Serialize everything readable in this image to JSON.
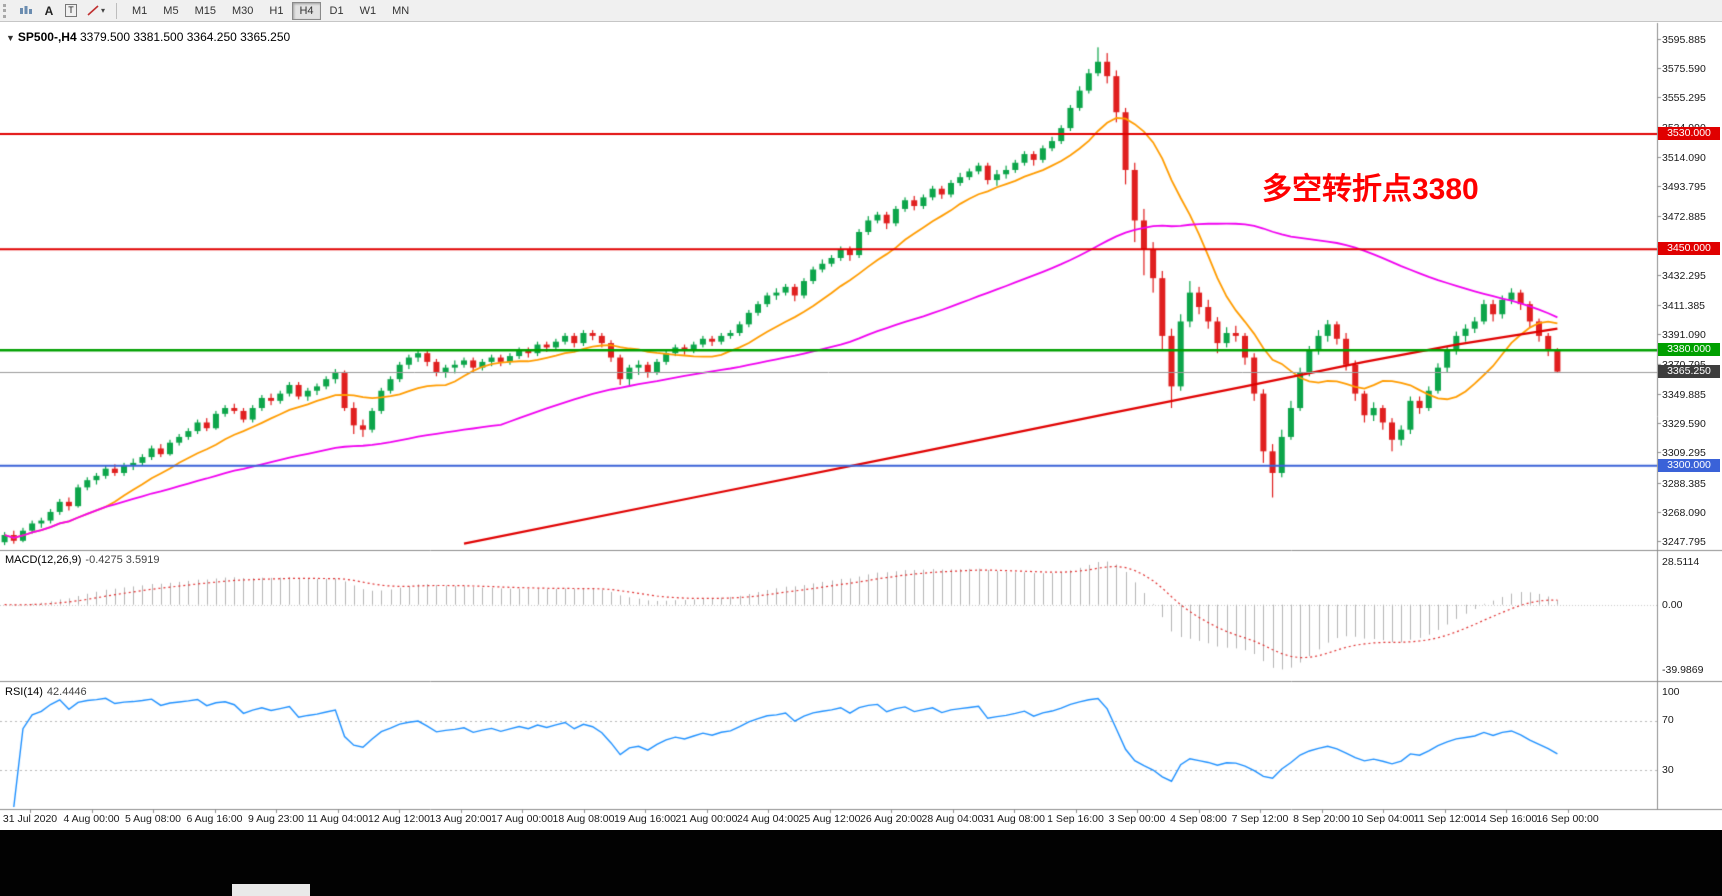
{
  "toolbar": {
    "tools": [
      {
        "label": "A"
      },
      {
        "label": "T"
      }
    ],
    "timeframes": [
      {
        "label": "M1",
        "active": false
      },
      {
        "label": "M5",
        "active": false
      },
      {
        "label": "M15",
        "active": false
      },
      {
        "label": "M30",
        "active": false
      },
      {
        "label": "H1",
        "active": false
      },
      {
        "label": "H4",
        "active": true
      },
      {
        "label": "D1",
        "active": false
      },
      {
        "label": "W1",
        "active": false
      },
      {
        "label": "MN",
        "active": false
      }
    ]
  },
  "chart": {
    "title_text": "SP500-,H4",
    "ohlc_text": "3379.500 3381.500 3364.250 3365.250",
    "annotation": {
      "text": "多空转折点3380",
      "color": "#ff0000"
    }
  },
  "macd": {
    "label": "MACD(12,26,9)",
    "values_text": "-0.4275 3.5919",
    "axis_top": "28.5114",
    "axis_zero": "0.00",
    "axis_min": "-39.9869"
  },
  "rsi": {
    "label": "RSI(14)",
    "value_text": "42.4446",
    "axis_top": "100",
    "axis_upper": "70",
    "axis_lower": "30"
  },
  "price_axis": {
    "labels": [
      "3595.885",
      "3575.590",
      "3555.295",
      "3534.990",
      "3514.090",
      "3493.795",
      "3472.885",
      "3452.590",
      "3432.295",
      "3411.385",
      "3391.090",
      "3370.795",
      "3349.885",
      "3329.590",
      "3309.295",
      "3288.385",
      "3268.090",
      "3247.795"
    ]
  },
  "time_axis": {
    "labels": [
      "31 Jul 2020",
      "4 Aug 00:00",
      "5 Aug 08:00",
      "6 Aug 16:00",
      "9 Aug 23:00",
      "11 Aug 04:00",
      "12 Aug 12:00",
      "13 Aug 20:00",
      "17 Aug 00:00",
      "18 Aug 08:00",
      "19 Aug 16:00",
      "21 Aug 00:00",
      "24 Aug 04:00",
      "25 Aug 12:00",
      "26 Aug 20:00",
      "28 Aug 04:00",
      "31 Aug 08:00",
      "1 Sep 16:00",
      "3 Sep 00:00",
      "4 Sep 08:00",
      "7 Sep 12:00",
      "8 Sep 20:00",
      "10 Sep 04:00",
      "11 Sep 12:00",
      "14 Sep 16:00",
      "16 Sep 00:00"
    ]
  },
  "chart_data": {
    "type": "candlestick",
    "symbol": "SP500-",
    "timeframe": "H4",
    "last_candle": {
      "open": 3379.5,
      "high": 3381.5,
      "low": 3364.25,
      "close": 3365.25
    },
    "ylim": [
      3243,
      3602
    ],
    "up_color": "#0ca54a",
    "down_color": "#e01f1f",
    "horizontal_levels": [
      {
        "price": 3530.0,
        "label": "3530.000",
        "color": "#e00000",
        "width": 2
      },
      {
        "price": 3450.0,
        "label": "3450.000",
        "color": "#e00000",
        "width": 2
      },
      {
        "price": 3380.0,
        "label": "3380.000",
        "color": "#00a000",
        "width": 2.4
      },
      {
        "price": 3300.0,
        "label": "3300.000",
        "color": "#3a62d8",
        "width": 2
      }
    ],
    "current_price": {
      "value": 3365.25,
      "label": "3365.250",
      "line_color": "#9a9a9a",
      "badge_color": "#3d3d3d"
    },
    "moving_averages": [
      {
        "name": "fast",
        "type": "sma",
        "period": 12,
        "color": "#ff9c00",
        "width": 1.8
      },
      {
        "name": "medium",
        "type": "sma",
        "period": 55,
        "color": "#f000f0",
        "width": 1.8
      },
      {
        "name": "slow",
        "type": "points",
        "color": "#e00000",
        "width": 2.2,
        "points": [
          [
            50,
            3246
          ],
          [
            75,
            3278
          ],
          [
            100,
            3310
          ],
          [
            120,
            3336
          ],
          [
            135,
            3355
          ],
          [
            148,
            3372
          ],
          [
            158,
            3384
          ],
          [
            164,
            3390
          ],
          [
            169,
            3395
          ]
        ]
      }
    ],
    "macd": {
      "fast": 12,
      "slow": 26,
      "signal": 9,
      "hist_color": "#b4b4b4",
      "signal_color": "#e03030"
    },
    "rsi": {
      "period": 14,
      "color": "#1e90ff",
      "levels": [
        70,
        30
      ]
    },
    "candles": [
      [
        3247,
        3254,
        3245,
        3252
      ],
      [
        3252,
        3255,
        3246,
        3248
      ],
      [
        3248,
        3257,
        3247,
        3255
      ],
      [
        3255,
        3262,
        3253,
        3260
      ],
      [
        3260,
        3264,
        3257,
        3262
      ],
      [
        3262,
        3270,
        3260,
        3268
      ],
      [
        3268,
        3277,
        3266,
        3275
      ],
      [
        3275,
        3278,
        3269,
        3272
      ],
      [
        3272,
        3287,
        3271,
        3285
      ],
      [
        3285,
        3292,
        3283,
        3290
      ],
      [
        3290,
        3295,
        3287,
        3293
      ],
      [
        3293,
        3300,
        3291,
        3298
      ],
      [
        3298,
        3301,
        3293,
        3295
      ],
      [
        3295,
        3302,
        3293,
        3300
      ],
      [
        3300,
        3305,
        3297,
        3302
      ],
      [
        3302,
        3308,
        3300,
        3306
      ],
      [
        3306,
        3314,
        3304,
        3312
      ],
      [
        3312,
        3315,
        3306,
        3308
      ],
      [
        3308,
        3318,
        3307,
        3316
      ],
      [
        3316,
        3322,
        3314,
        3320
      ],
      [
        3320,
        3326,
        3318,
        3324
      ],
      [
        3324,
        3332,
        3322,
        3330
      ],
      [
        3330,
        3333,
        3324,
        3326
      ],
      [
        3326,
        3338,
        3325,
        3336
      ],
      [
        3336,
        3342,
        3334,
        3340
      ],
      [
        3340,
        3343,
        3336,
        3338
      ],
      [
        3338,
        3340,
        3330,
        3332
      ],
      [
        3332,
        3342,
        3330,
        3340
      ],
      [
        3340,
        3349,
        3338,
        3347
      ],
      [
        3347,
        3350,
        3342,
        3345
      ],
      [
        3345,
        3352,
        3343,
        3350
      ],
      [
        3350,
        3358,
        3348,
        3356
      ],
      [
        3356,
        3358,
        3346,
        3348
      ],
      [
        3348,
        3354,
        3345,
        3352
      ],
      [
        3352,
        3357,
        3349,
        3355
      ],
      [
        3355,
        3362,
        3353,
        3360
      ],
      [
        3360,
        3367,
        3357,
        3365
      ],
      [
        3365,
        3366,
        3338,
        3340
      ],
      [
        3340,
        3344,
        3322,
        3328
      ],
      [
        3328,
        3332,
        3320,
        3325
      ],
      [
        3325,
        3340,
        3323,
        3338
      ],
      [
        3338,
        3354,
        3336,
        3352
      ],
      [
        3352,
        3362,
        3350,
        3360
      ],
      [
        3360,
        3372,
        3358,
        3370
      ],
      [
        3370,
        3377,
        3367,
        3375
      ],
      [
        3375,
        3380,
        3372,
        3378
      ],
      [
        3378,
        3380,
        3369,
        3372
      ],
      [
        3372,
        3374,
        3362,
        3365
      ],
      [
        3365,
        3370,
        3361,
        3368
      ],
      [
        3368,
        3373,
        3364,
        3370
      ],
      [
        3370,
        3375,
        3368,
        3373
      ],
      [
        3373,
        3375,
        3365,
        3368
      ],
      [
        3368,
        3374,
        3366,
        3372
      ],
      [
        3372,
        3377,
        3369,
        3375
      ],
      [
        3375,
        3377,
        3369,
        3372
      ],
      [
        3372,
        3378,
        3370,
        3376
      ],
      [
        3376,
        3382,
        3374,
        3380
      ],
      [
        3380,
        3382,
        3375,
        3378
      ],
      [
        3378,
        3386,
        3376,
        3384
      ],
      [
        3384,
        3386,
        3379,
        3382
      ],
      [
        3382,
        3388,
        3380,
        3386
      ],
      [
        3386,
        3392,
        3384,
        3390
      ],
      [
        3390,
        3392,
        3382,
        3385
      ],
      [
        3385,
        3394,
        3383,
        3392
      ],
      [
        3392,
        3394,
        3387,
        3390
      ],
      [
        3390,
        3392,
        3382,
        3385
      ],
      [
        3385,
        3387,
        3372,
        3375
      ],
      [
        3375,
        3377,
        3356,
        3360
      ],
      [
        3360,
        3370,
        3356,
        3368
      ],
      [
        3368,
        3373,
        3363,
        3370
      ],
      [
        3370,
        3372,
        3361,
        3365
      ],
      [
        3365,
        3374,
        3363,
        3372
      ],
      [
        3372,
        3380,
        3370,
        3378
      ],
      [
        3378,
        3384,
        3376,
        3382
      ],
      [
        3382,
        3384,
        3377,
        3380
      ],
      [
        3380,
        3386,
        3378,
        3384
      ],
      [
        3384,
        3390,
        3382,
        3388
      ],
      [
        3388,
        3390,
        3383,
        3386
      ],
      [
        3386,
        3392,
        3384,
        3390
      ],
      [
        3390,
        3394,
        3388,
        3392
      ],
      [
        3392,
        3400,
        3390,
        3398
      ],
      [
        3398,
        3408,
        3396,
        3406
      ],
      [
        3406,
        3414,
        3404,
        3412
      ],
      [
        3412,
        3420,
        3410,
        3418
      ],
      [
        3418,
        3423,
        3415,
        3420
      ],
      [
        3420,
        3426,
        3418,
        3424
      ],
      [
        3424,
        3426,
        3414,
        3418
      ],
      [
        3418,
        3430,
        3416,
        3428
      ],
      [
        3428,
        3438,
        3426,
        3436
      ],
      [
        3436,
        3443,
        3434,
        3440
      ],
      [
        3440,
        3446,
        3438,
        3444
      ],
      [
        3444,
        3452,
        3442,
        3450
      ],
      [
        3450,
        3452,
        3442,
        3446
      ],
      [
        3446,
        3464,
        3444,
        3462
      ],
      [
        3462,
        3473,
        3460,
        3470
      ],
      [
        3470,
        3476,
        3468,
        3474
      ],
      [
        3474,
        3476,
        3464,
        3468
      ],
      [
        3468,
        3480,
        3466,
        3478
      ],
      [
        3478,
        3486,
        3476,
        3484
      ],
      [
        3484,
        3487,
        3477,
        3480
      ],
      [
        3480,
        3488,
        3478,
        3486
      ],
      [
        3486,
        3494,
        3484,
        3492
      ],
      [
        3492,
        3494,
        3485,
        3488
      ],
      [
        3488,
        3498,
        3486,
        3496
      ],
      [
        3496,
        3503,
        3494,
        3500
      ],
      [
        3500,
        3506,
        3498,
        3504
      ],
      [
        3504,
        3510,
        3502,
        3508
      ],
      [
        3508,
        3510,
        3495,
        3498
      ],
      [
        3498,
        3505,
        3494,
        3502
      ],
      [
        3502,
        3508,
        3499,
        3505
      ],
      [
        3505,
        3512,
        3503,
        3510
      ],
      [
        3510,
        3518,
        3508,
        3516
      ],
      [
        3516,
        3518,
        3508,
        3512
      ],
      [
        3512,
        3522,
        3510,
        3520
      ],
      [
        3520,
        3528,
        3518,
        3525
      ],
      [
        3525,
        3536,
        3523,
        3534
      ],
      [
        3534,
        3550,
        3532,
        3548
      ],
      [
        3548,
        3563,
        3546,
        3560
      ],
      [
        3560,
        3575,
        3558,
        3572
      ],
      [
        3572,
        3590,
        3570,
        3580
      ],
      [
        3580,
        3586,
        3565,
        3570
      ],
      [
        3570,
        3574,
        3538,
        3545
      ],
      [
        3545,
        3548,
        3495,
        3505
      ],
      [
        3505,
        3510,
        3455,
        3470
      ],
      [
        3470,
        3478,
        3432,
        3450
      ],
      [
        3450,
        3455,
        3420,
        3430
      ],
      [
        3430,
        3435,
        3380,
        3390
      ],
      [
        3390,
        3395,
        3340,
        3355
      ],
      [
        3355,
        3405,
        3352,
        3400
      ],
      [
        3400,
        3428,
        3396,
        3420
      ],
      [
        3420,
        3424,
        3405,
        3410
      ],
      [
        3410,
        3415,
        3395,
        3400
      ],
      [
        3400,
        3403,
        3378,
        3385
      ],
      [
        3385,
        3396,
        3382,
        3392
      ],
      [
        3392,
        3397,
        3386,
        3390
      ],
      [
        3390,
        3392,
        3370,
        3375
      ],
      [
        3375,
        3378,
        3345,
        3350
      ],
      [
        3350,
        3353,
        3302,
        3310
      ],
      [
        3310,
        3315,
        3278,
        3295
      ],
      [
        3295,
        3325,
        3292,
        3320
      ],
      [
        3320,
        3345,
        3318,
        3340
      ],
      [
        3340,
        3368,
        3338,
        3365
      ],
      [
        3365,
        3383,
        3362,
        3380
      ],
      [
        3380,
        3394,
        3377,
        3390
      ],
      [
        3390,
        3401,
        3386,
        3398
      ],
      [
        3398,
        3400,
        3384,
        3388
      ],
      [
        3388,
        3392,
        3366,
        3370
      ],
      [
        3370,
        3373,
        3345,
        3350
      ],
      [
        3350,
        3352,
        3330,
        3335
      ],
      [
        3335,
        3344,
        3331,
        3340
      ],
      [
        3340,
        3342,
        3325,
        3330
      ],
      [
        3330,
        3333,
        3310,
        3318
      ],
      [
        3318,
        3328,
        3314,
        3325
      ],
      [
        3325,
        3348,
        3322,
        3345
      ],
      [
        3345,
        3348,
        3336,
        3340
      ],
      [
        3340,
        3355,
        3338,
        3352
      ],
      [
        3352,
        3371,
        3350,
        3368
      ],
      [
        3368,
        3383,
        3365,
        3380
      ],
      [
        3380,
        3393,
        3377,
        3390
      ],
      [
        3390,
        3398,
        3386,
        3395
      ],
      [
        3395,
        3403,
        3392,
        3400
      ],
      [
        3400,
        3415,
        3398,
        3412
      ],
      [
        3412,
        3415,
        3400,
        3405
      ],
      [
        3405,
        3418,
        3402,
        3415
      ],
      [
        3415,
        3423,
        3412,
        3420
      ],
      [
        3420,
        3422,
        3408,
        3412
      ],
      [
        3412,
        3414,
        3396,
        3400
      ],
      [
        3400,
        3402,
        3386,
        3390
      ],
      [
        3390,
        3392,
        3376,
        3379.5
      ],
      [
        3379.5,
        3381.5,
        3364.25,
        3365.25
      ]
    ]
  }
}
